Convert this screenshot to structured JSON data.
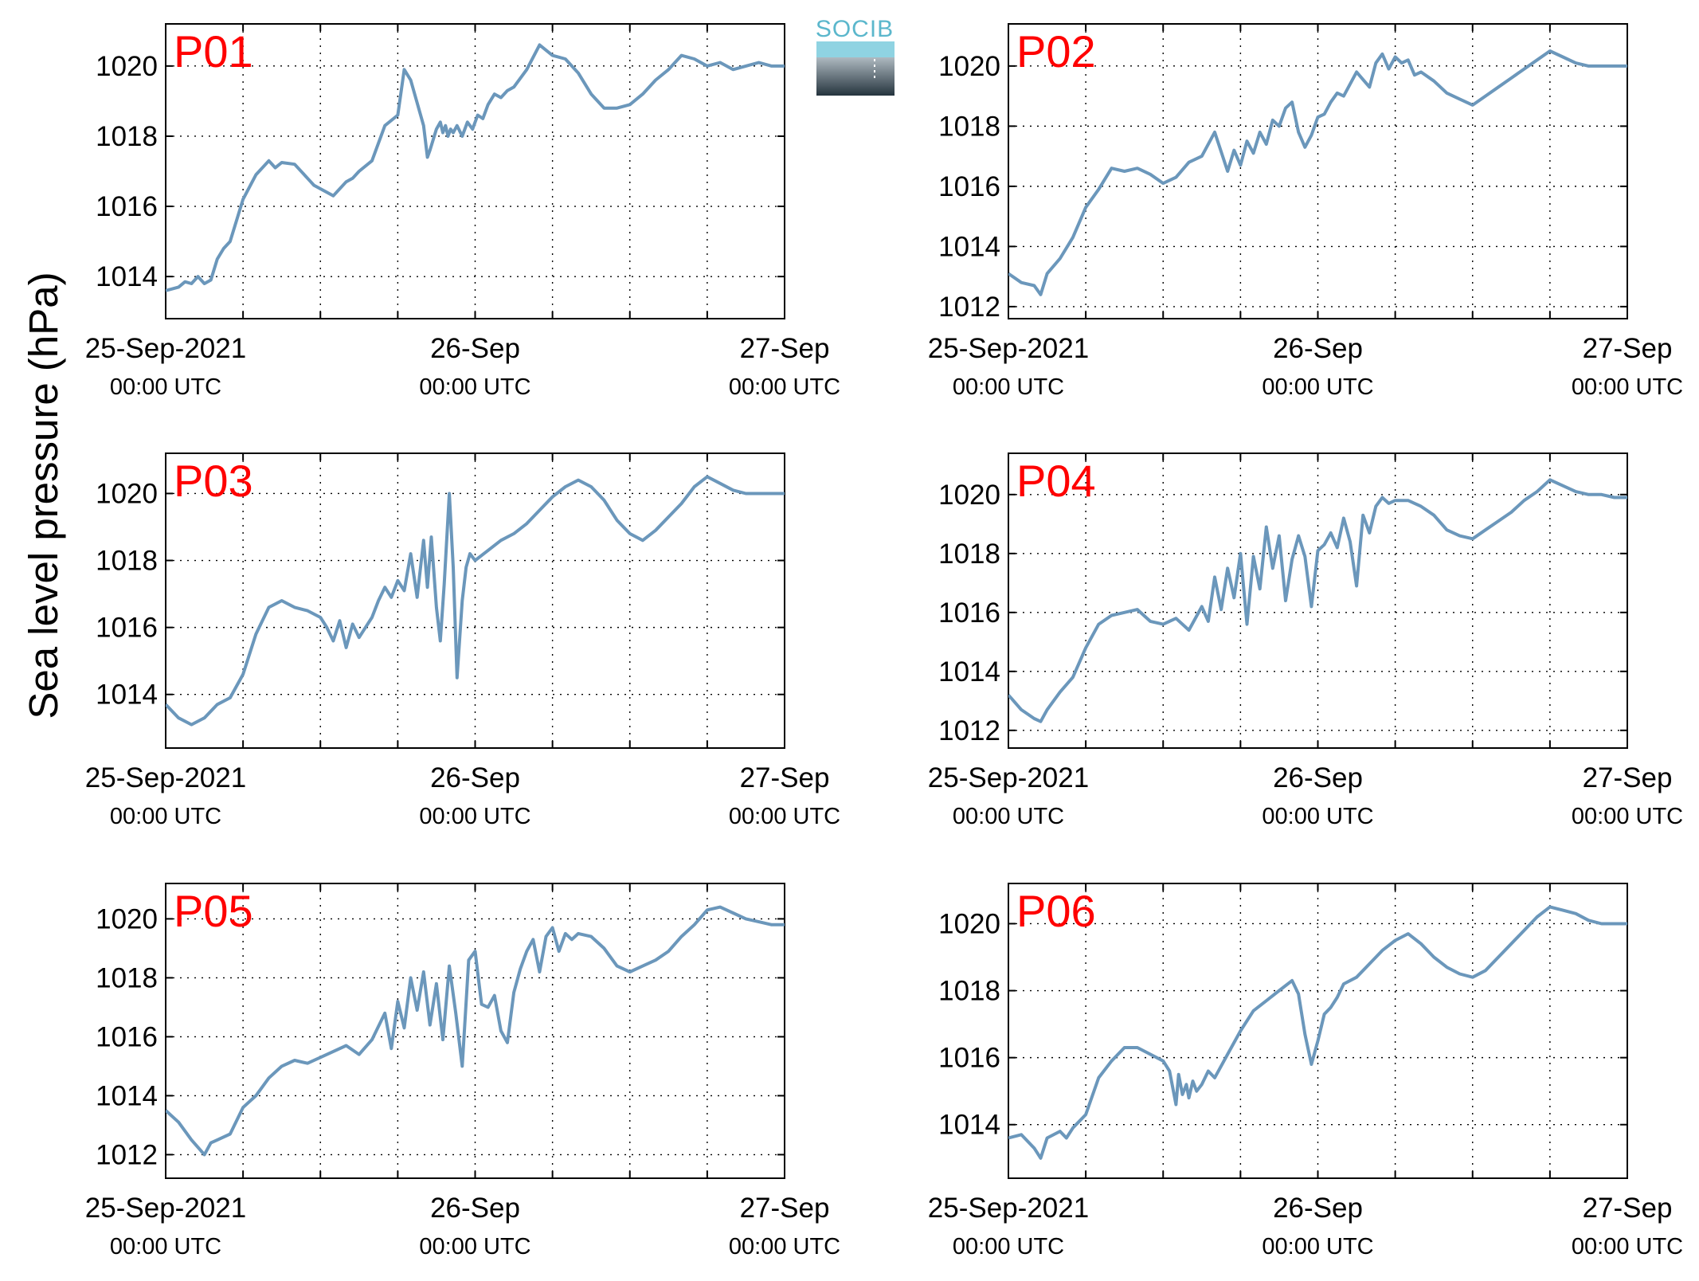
{
  "figure": {
    "ylabel": "Sea level pressure (hPa)",
    "logo_text": "SOCIB",
    "colors": {
      "line": "#6b97bb",
      "station_label": "#ff0000",
      "axis": "#000000",
      "grid": "#000000"
    }
  },
  "chart_data": [
    {
      "type": "line",
      "station": "P01",
      "x_ticks": [
        "25-Sep-2021",
        "26-Sep",
        "27-Sep"
      ],
      "x_tick_sub": [
        "00:00 UTC",
        "00:00 UTC",
        "00:00 UTC"
      ],
      "xlim_hours": [
        0,
        48
      ],
      "ylim": [
        1012.8,
        1021.2
      ],
      "y_ticks": [
        1014,
        1016,
        1018,
        1020
      ],
      "grid": true,
      "series": [
        {
          "x": [
            0,
            1,
            1.5,
            2,
            2.5,
            3,
            3.5,
            4,
            4.5,
            5,
            5.5,
            6,
            7,
            8,
            8.5,
            9,
            10,
            11,
            11.5,
            12,
            13,
            14,
            14.5,
            15,
            16,
            17,
            18,
            18.5,
            19,
            20,
            20.3,
            20.5,
            21,
            21.3,
            21.5,
            21.7,
            21.9,
            22.1,
            22.3,
            22.6,
            23,
            23.4,
            23.8,
            24.2,
            24.6,
            25,
            25.5,
            26,
            26.5,
            27,
            28,
            29,
            30,
            31,
            32,
            33,
            34,
            35,
            36,
            37,
            38,
            39,
            40,
            41,
            42,
            43,
            44,
            45,
            46,
            47,
            48
          ],
          "y": [
            1013.6,
            1013.7,
            1013.85,
            1013.8,
            1014.0,
            1013.8,
            1013.9,
            1014.5,
            1014.8,
            1015.0,
            1015.6,
            1016.2,
            1016.9,
            1017.3,
            1017.1,
            1017.25,
            1017.2,
            1016.8,
            1016.6,
            1016.5,
            1016.3,
            1016.7,
            1016.8,
            1017.0,
            1017.3,
            1018.3,
            1018.6,
            1019.9,
            1019.6,
            1018.3,
            1017.4,
            1017.6,
            1018.2,
            1018.4,
            1018.1,
            1018.3,
            1018.0,
            1018.2,
            1018.1,
            1018.3,
            1018.0,
            1018.4,
            1018.2,
            1018.6,
            1018.5,
            1018.9,
            1019.2,
            1019.1,
            1019.3,
            1019.4,
            1019.9,
            1020.6,
            1020.3,
            1020.2,
            1019.8,
            1019.2,
            1018.8,
            1018.8,
            1018.9,
            1019.2,
            1019.6,
            1019.9,
            1020.3,
            1020.2,
            1020.0,
            1020.1,
            1019.9,
            1020.0,
            1020.1,
            1020.0,
            1020.0
          ]
        }
      ]
    },
    {
      "type": "line",
      "station": "P02",
      "x_ticks": [
        "25-Sep-2021",
        "26-Sep",
        "27-Sep"
      ],
      "x_tick_sub": [
        "00:00 UTC",
        "00:00 UTC",
        "00:00 UTC"
      ],
      "xlim_hours": [
        0,
        48
      ],
      "ylim": [
        1011.6,
        1021.4
      ],
      "y_ticks": [
        1012,
        1014,
        1016,
        1018,
        1020
      ],
      "grid": true,
      "series": [
        {
          "x": [
            0,
            1,
            2,
            2.5,
            3,
            4,
            5,
            6,
            7,
            8,
            9,
            10,
            11,
            12,
            13,
            14,
            15,
            16,
            17,
            17.5,
            18,
            18.5,
            19,
            19.5,
            20,
            20.5,
            21,
            21.5,
            22,
            22.5,
            23,
            23.5,
            24,
            24.5,
            25,
            25.5,
            26,
            27,
            28,
            28.5,
            29,
            29.5,
            30,
            30.5,
            31,
            31.5,
            32,
            33,
            34,
            35,
            36,
            37,
            38,
            39,
            40,
            41,
            42,
            43,
            44,
            45,
            46,
            47,
            48
          ],
          "y": [
            1013.1,
            1012.8,
            1012.7,
            1012.4,
            1013.1,
            1013.6,
            1014.3,
            1015.3,
            1015.9,
            1016.6,
            1016.5,
            1016.6,
            1016.4,
            1016.1,
            1016.3,
            1016.8,
            1017.0,
            1017.8,
            1016.5,
            1017.2,
            1016.7,
            1017.5,
            1017.1,
            1017.8,
            1017.4,
            1018.2,
            1018.0,
            1018.6,
            1018.8,
            1017.8,
            1017.3,
            1017.7,
            1018.3,
            1018.4,
            1018.8,
            1019.1,
            1019.0,
            1019.8,
            1019.3,
            1020.1,
            1020.4,
            1019.9,
            1020.3,
            1020.1,
            1020.2,
            1019.7,
            1019.8,
            1019.5,
            1019.1,
            1018.9,
            1018.7,
            1019.0,
            1019.3,
            1019.6,
            1019.9,
            1020.2,
            1020.5,
            1020.3,
            1020.1,
            1020.0,
            1020.0,
            1020.0,
            1020.0
          ]
        }
      ]
    },
    {
      "type": "line",
      "station": "P03",
      "x_ticks": [
        "25-Sep-2021",
        "26-Sep",
        "27-Sep"
      ],
      "x_tick_sub": [
        "00:00 UTC",
        "00:00 UTC",
        "00:00 UTC"
      ],
      "xlim_hours": [
        0,
        48
      ],
      "ylim": [
        1012.4,
        1021.2
      ],
      "y_ticks": [
        1014,
        1016,
        1018,
        1020
      ],
      "grid": true,
      "series": [
        {
          "x": [
            0,
            1,
            2,
            3,
            4,
            5,
            6,
            7,
            8,
            9,
            10,
            11,
            12,
            12.5,
            13,
            13.5,
            14,
            14.5,
            15,
            15.5,
            16,
            16.5,
            17,
            17.5,
            18,
            18.5,
            19,
            19.5,
            20,
            20.3,
            20.6,
            21,
            21.3,
            21.6,
            22,
            22.3,
            22.6,
            23,
            23.3,
            23.6,
            24,
            25,
            26,
            27,
            28,
            29,
            30,
            31,
            32,
            33,
            34,
            35,
            36,
            37,
            38,
            39,
            40,
            41,
            42,
            43,
            44,
            45,
            46,
            47,
            48
          ],
          "y": [
            1013.7,
            1013.3,
            1013.1,
            1013.3,
            1013.7,
            1013.9,
            1014.6,
            1015.8,
            1016.6,
            1016.8,
            1016.6,
            1016.5,
            1016.3,
            1016.0,
            1015.6,
            1016.2,
            1015.4,
            1016.1,
            1015.7,
            1016.0,
            1016.3,
            1016.8,
            1017.2,
            1016.9,
            1017.4,
            1017.1,
            1018.2,
            1016.9,
            1018.6,
            1017.2,
            1018.7,
            1016.6,
            1015.6,
            1017.3,
            1020.0,
            1017.8,
            1014.5,
            1016.8,
            1017.8,
            1018.2,
            1018.0,
            1018.3,
            1018.6,
            1018.8,
            1019.1,
            1019.5,
            1019.9,
            1020.2,
            1020.4,
            1020.2,
            1019.8,
            1019.2,
            1018.8,
            1018.6,
            1018.9,
            1019.3,
            1019.7,
            1020.2,
            1020.5,
            1020.3,
            1020.1,
            1020.0,
            1020.0,
            1020.0,
            1020.0
          ]
        }
      ]
    },
    {
      "type": "line",
      "station": "P04",
      "x_ticks": [
        "25-Sep-2021",
        "26-Sep",
        "27-Sep"
      ],
      "x_tick_sub": [
        "00:00 UTC",
        "00:00 UTC",
        "00:00 UTC"
      ],
      "xlim_hours": [
        0,
        48
      ],
      "ylim": [
        1011.4,
        1021.4
      ],
      "y_ticks": [
        1012,
        1014,
        1016,
        1018,
        1020
      ],
      "grid": true,
      "series": [
        {
          "x": [
            0,
            1,
            2,
            2.5,
            3,
            4,
            5,
            6,
            7,
            8,
            9,
            10,
            11,
            12,
            13,
            14,
            15,
            15.5,
            16,
            16.5,
            17,
            17.5,
            18,
            18.5,
            19,
            19.5,
            20,
            20.5,
            21,
            21.5,
            22,
            22.5,
            23,
            23.5,
            24,
            24.5,
            25,
            25.5,
            26,
            26.5,
            27,
            27.5,
            28,
            28.5,
            29,
            29.5,
            30,
            31,
            32,
            33,
            34,
            35,
            36,
            37,
            38,
            39,
            40,
            41,
            42,
            43,
            44,
            45,
            46,
            47,
            48
          ],
          "y": [
            1013.2,
            1012.7,
            1012.4,
            1012.3,
            1012.7,
            1013.3,
            1013.8,
            1014.8,
            1015.6,
            1015.9,
            1016.0,
            1016.1,
            1015.7,
            1015.6,
            1015.8,
            1015.4,
            1016.2,
            1015.7,
            1017.2,
            1016.1,
            1017.5,
            1016.5,
            1018.0,
            1015.6,
            1017.9,
            1016.8,
            1018.9,
            1017.5,
            1018.6,
            1016.4,
            1017.8,
            1018.6,
            1017.9,
            1016.2,
            1018.1,
            1018.3,
            1018.7,
            1018.2,
            1019.2,
            1018.4,
            1016.9,
            1019.3,
            1018.7,
            1019.6,
            1019.9,
            1019.7,
            1019.8,
            1019.8,
            1019.6,
            1019.3,
            1018.8,
            1018.6,
            1018.5,
            1018.8,
            1019.1,
            1019.4,
            1019.8,
            1020.1,
            1020.5,
            1020.3,
            1020.1,
            1020.0,
            1020.0,
            1019.9,
            1019.9
          ]
        }
      ]
    },
    {
      "type": "line",
      "station": "P05",
      "x_ticks": [
        "25-Sep-2021",
        "26-Sep",
        "27-Sep"
      ],
      "x_tick_sub": [
        "00:00 UTC",
        "00:00 UTC",
        "00:00 UTC"
      ],
      "xlim_hours": [
        0,
        48
      ],
      "ylim": [
        1011.2,
        1021.2
      ],
      "y_ticks": [
        1012,
        1014,
        1016,
        1018,
        1020
      ],
      "grid": true,
      "series": [
        {
          "x": [
            0,
            1,
            2,
            3,
            3.5,
            4,
            5,
            6,
            7,
            8,
            9,
            10,
            11,
            12,
            13,
            14,
            15,
            16,
            17,
            17.5,
            18,
            18.5,
            19,
            19.5,
            20,
            20.5,
            21,
            21.5,
            22,
            22.5,
            23,
            23.5,
            24,
            24.5,
            25,
            25.5,
            26,
            26.5,
            27,
            27.5,
            28,
            28.5,
            29,
            29.5,
            30,
            30.5,
            31,
            31.5,
            32,
            33,
            34,
            35,
            36,
            37,
            38,
            39,
            40,
            41,
            42,
            43,
            44,
            45,
            46,
            47,
            48
          ],
          "y": [
            1013.5,
            1013.1,
            1012.5,
            1012.0,
            1012.4,
            1012.5,
            1012.7,
            1013.6,
            1014.0,
            1014.6,
            1015.0,
            1015.2,
            1015.1,
            1015.3,
            1015.5,
            1015.7,
            1015.4,
            1015.9,
            1016.8,
            1015.6,
            1017.2,
            1016.3,
            1018.0,
            1016.9,
            1018.2,
            1016.4,
            1017.8,
            1015.9,
            1018.4,
            1016.8,
            1015.0,
            1018.6,
            1018.9,
            1017.1,
            1017.0,
            1017.4,
            1016.2,
            1015.8,
            1017.5,
            1018.3,
            1018.9,
            1019.3,
            1018.2,
            1019.4,
            1019.7,
            1018.9,
            1019.5,
            1019.3,
            1019.5,
            1019.4,
            1019.0,
            1018.4,
            1018.2,
            1018.4,
            1018.6,
            1018.9,
            1019.4,
            1019.8,
            1020.3,
            1020.4,
            1020.2,
            1020.0,
            1019.9,
            1019.8,
            1019.8
          ]
        }
      ]
    },
    {
      "type": "line",
      "station": "P06",
      "x_ticks": [
        "25-Sep-2021",
        "26-Sep",
        "27-Sep"
      ],
      "x_tick_sub": [
        "00:00 UTC",
        "00:00 UTC",
        "00:00 UTC"
      ],
      "xlim_hours": [
        0,
        48
      ],
      "ylim": [
        1012.4,
        1021.2
      ],
      "y_ticks": [
        1014,
        1016,
        1018,
        1020
      ],
      "grid": true,
      "series": [
        {
          "x": [
            0,
            1,
            2,
            2.5,
            3,
            4,
            4.5,
            5,
            6,
            7,
            8,
            9,
            10,
            11,
            12,
            12.5,
            13,
            13.2,
            13.5,
            13.8,
            14,
            14.3,
            14.6,
            15,
            15.5,
            16,
            17,
            18,
            19,
            20,
            21,
            22,
            22.5,
            23,
            23.5,
            24,
            24.5,
            25,
            25.5,
            26,
            27,
            28,
            29,
            30,
            31,
            32,
            33,
            34,
            35,
            36,
            37,
            38,
            39,
            40,
            41,
            42,
            43,
            44,
            45,
            46,
            47,
            48
          ],
          "y": [
            1013.6,
            1013.7,
            1013.3,
            1013.0,
            1013.6,
            1013.8,
            1013.6,
            1013.9,
            1014.3,
            1015.4,
            1015.9,
            1016.3,
            1016.3,
            1016.1,
            1015.9,
            1015.6,
            1014.6,
            1015.5,
            1014.9,
            1015.2,
            1014.8,
            1015.3,
            1015.0,
            1015.2,
            1015.6,
            1015.4,
            1016.1,
            1016.8,
            1017.4,
            1017.7,
            1018.0,
            1018.3,
            1017.9,
            1016.7,
            1015.8,
            1016.5,
            1017.3,
            1017.5,
            1017.8,
            1018.2,
            1018.4,
            1018.8,
            1019.2,
            1019.5,
            1019.7,
            1019.4,
            1019.0,
            1018.7,
            1018.5,
            1018.4,
            1018.6,
            1019.0,
            1019.4,
            1019.8,
            1020.2,
            1020.5,
            1020.4,
            1020.3,
            1020.1,
            1020.0,
            1020.0,
            1020.0
          ]
        }
      ]
    }
  ]
}
